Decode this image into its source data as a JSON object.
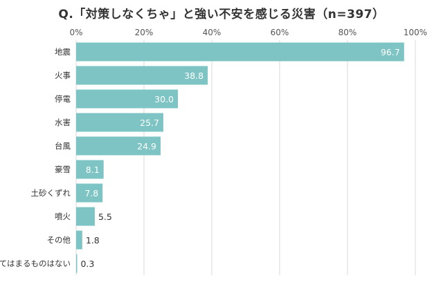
{
  "chart_data": {
    "type": "bar",
    "orientation": "horizontal",
    "title": "Q.「対策しなくちゃ」と強い不安を感じる災害（n=397）",
    "categories": [
      "地震",
      "火事",
      "停電",
      "水害",
      "台風",
      "豪雪",
      "土砂くずれ",
      "噴火",
      "その他",
      "あてはまるものはない"
    ],
    "values": [
      96.7,
      38.8,
      30.0,
      25.7,
      24.9,
      8.1,
      7.8,
      5.5,
      1.8,
      0.3
    ],
    "value_labels": [
      "96.7",
      "38.8",
      "30.0",
      "25.7",
      "24.9",
      "8.1",
      "7.8",
      "5.5",
      "1.8",
      "0.3"
    ],
    "xticks": [
      "0%",
      "20%",
      "40%",
      "60%",
      "80%",
      "100%"
    ],
    "xlim": [
      0,
      100
    ],
    "grid": true,
    "axis_position": "top",
    "colors": {
      "bar": "#7fc4c4",
      "grid": "#d9d9d9",
      "label_inside": "#ffffff",
      "label_outside": "#333333"
    }
  }
}
